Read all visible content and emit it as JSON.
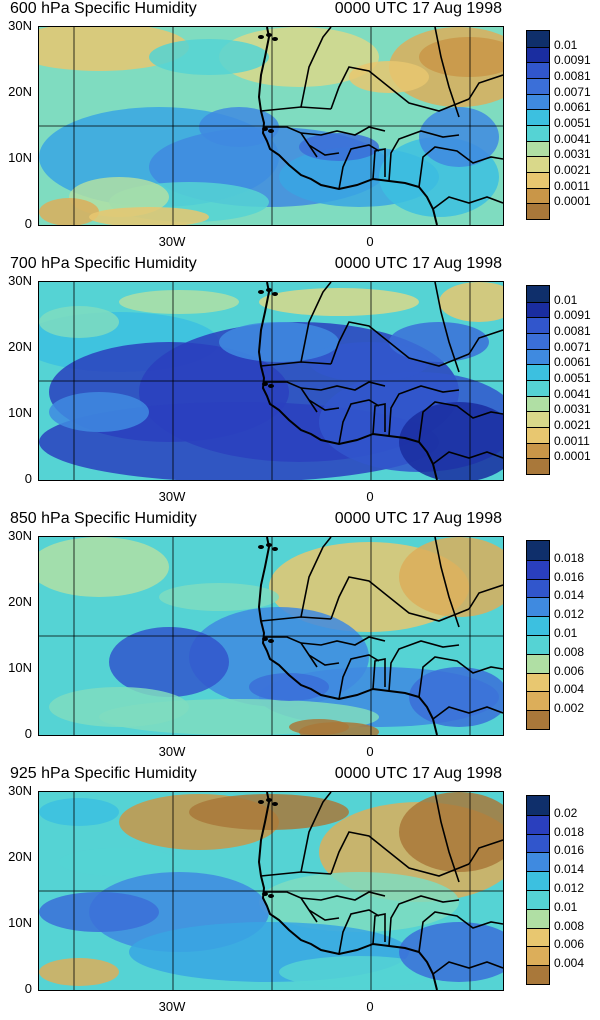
{
  "panels": [
    {
      "title": "600 hPa Specific Humidity",
      "time": "0000 UTC 17 Aug 1998",
      "y_ticks": [
        "30N",
        "20N",
        "10N",
        "0"
      ],
      "x_ticks": [
        "30W",
        "0"
      ],
      "colorbar_labels": [
        "0.01",
        "0.0091",
        "0.0081",
        "0.0071",
        "0.0061",
        "0.0051",
        "0.0041",
        "0.0031",
        "0.0021",
        "0.0011",
        "0.0001"
      ],
      "palette": [
        "#0f2f6b",
        "#1a2da0",
        "#2a3fbe",
        "#3156cc",
        "#3b6fd8",
        "#3f8ae0",
        "#38a6e3",
        "#3cc0e0",
        "#55d3d4",
        "#7fdcc0",
        "#b0dfa4",
        "#d9d88a",
        "#e8c770",
        "#dcae5a",
        "#c99648",
        "#a9783a"
      ]
    },
    {
      "title": "700 hPa Specific Humidity",
      "time": "0000 UTC 17 Aug 1998",
      "y_ticks": [
        "30N",
        "20N",
        "10N",
        "0"
      ],
      "x_ticks": [
        "30W",
        "0"
      ],
      "colorbar_labels": [
        "0.01",
        "0.0091",
        "0.0081",
        "0.0071",
        "0.0061",
        "0.0051",
        "0.0041",
        "0.0031",
        "0.0021",
        "0.0011",
        "0.0001"
      ],
      "palette": [
        "#0f2f6b",
        "#1a2da0",
        "#2a3fbe",
        "#3156cc",
        "#3b6fd8",
        "#3f8ae0",
        "#38a6e3",
        "#3cc0e0",
        "#55d3d4",
        "#7fdcc0",
        "#b0dfa4",
        "#d9d88a",
        "#e8c770",
        "#dcae5a",
        "#c99648",
        "#a9783a"
      ]
    },
    {
      "title": "850 hPa Specific Humidity",
      "time": "0000 UTC 17 Aug 1998",
      "y_ticks": [
        "30N",
        "20N",
        "10N",
        "0"
      ],
      "x_ticks": [
        "30W",
        "0"
      ],
      "colorbar_labels": [
        "0.018",
        "0.016",
        "0.014",
        "0.012",
        "0.01",
        "0.008",
        "0.006",
        "0.004",
        "0.002"
      ],
      "palette": [
        "#0f2f6b",
        "#1a2da0",
        "#2a3fbe",
        "#3156cc",
        "#3b6fd8",
        "#3f8ae0",
        "#38a6e3",
        "#3cc0e0",
        "#55d3d4",
        "#7fdcc0",
        "#b0dfa4",
        "#d9d88a",
        "#e8c770",
        "#dcae5a",
        "#c99648",
        "#a9783a"
      ]
    },
    {
      "title": "925 hPa Specific Humidity",
      "time": "0000 UTC 17 Aug 1998",
      "y_ticks": [
        "30N",
        "20N",
        "10N",
        "0"
      ],
      "x_ticks": [
        "30W",
        "0"
      ],
      "colorbar_labels": [
        "0.02",
        "0.018",
        "0.016",
        "0.014",
        "0.012",
        "0.01",
        "0.008",
        "0.006",
        "0.004"
      ],
      "palette": [
        "#0f2f6b",
        "#1a2da0",
        "#2a3fbe",
        "#3156cc",
        "#3b6fd8",
        "#3f8ae0",
        "#38a6e3",
        "#3cc0e0",
        "#55d3d4",
        "#7fdcc0",
        "#b0dfa4",
        "#d9d88a",
        "#e8c770",
        "#dcae5a",
        "#c99648",
        "#a9783a"
      ]
    }
  ]
}
